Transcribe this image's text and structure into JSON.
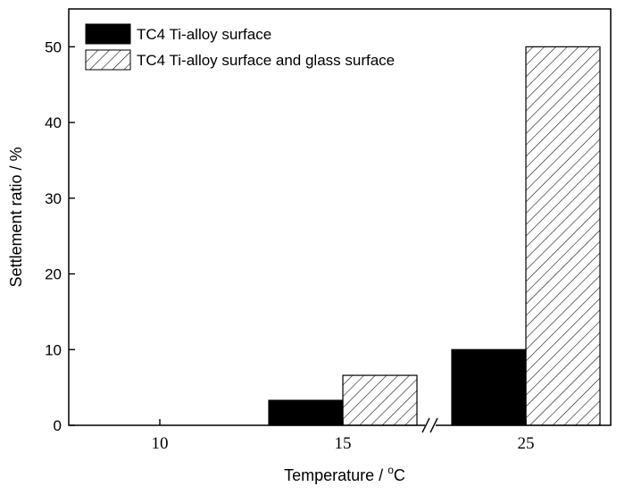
{
  "chart_data": {
    "type": "bar",
    "categories": [
      "10",
      "15",
      "25"
    ],
    "series": [
      {
        "name": "TC4 Ti-alloy surface",
        "values": [
          0,
          3.3,
          10
        ],
        "color": "#000000",
        "pattern": "solid"
      },
      {
        "name": "TC4 Ti-alloy surface and glass surface",
        "values": [
          0,
          6.6,
          50
        ],
        "color": "#000000",
        "pattern": "hatched"
      }
    ],
    "xlabel": "Temperature / °C",
    "xlabel_main": "Temperature / ",
    "xlabel_sup": "o",
    "xlabel_unit": "C",
    "ylabel": "Settlement ratio / %",
    "ylim": [
      0,
      55
    ],
    "yticks": [
      "0",
      "10",
      "20",
      "30",
      "40",
      "50"
    ],
    "axis_break": "between 15 and 25",
    "grid": false,
    "legend_position": "top-left"
  }
}
